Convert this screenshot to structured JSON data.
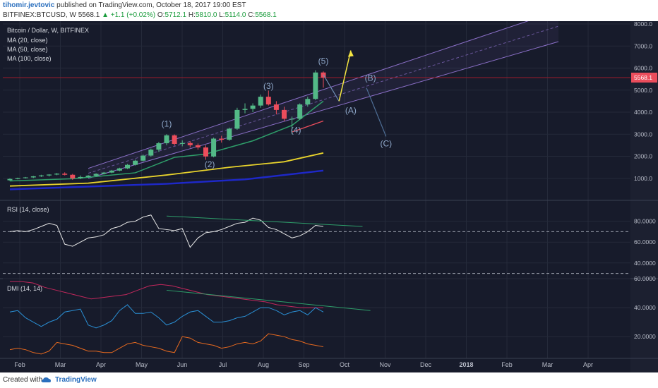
{
  "header": {
    "author": "tihomir.jevtovic",
    "published_text": "published on TradingView.com, October 18, 2017 19:00 EST",
    "symbol": "BITFINEX:BTCUSD, W",
    "last": "5568.1",
    "change": "+1.1 (+0.02%)",
    "ohlc": {
      "o_label": "O:",
      "o": "5712.1",
      "h_label": "H:",
      "h": "5810.0",
      "l_label": "L:",
      "l": "5114.0",
      "c_label": "C:",
      "c": "5568.1"
    }
  },
  "footer": {
    "created_with": "Created with",
    "brand": "TradingView",
    "logo_icon": "tradingview-logo-icon"
  },
  "colors": {
    "background": "#171b2b",
    "grid": "#252a3a",
    "up": "#53b987",
    "down": "#eb4d5c",
    "ma20": "#2e9e6a",
    "ma50": "#e8d32c",
    "ma100": "#1e28c8",
    "channel": "#8a6fc7",
    "rsi": "#e8e8e8",
    "dmi_plus": "#2a8fd4",
    "dmi_minus": "#e86a1f",
    "adx": "#c2275c",
    "price_line": "#9c1b2b",
    "arrow_up": "#f5e642",
    "annotation": "#4e6e95"
  },
  "chart_data": {
    "type": "candlestick",
    "title": "Bitcoin / Dollar, W, BITFINEX",
    "legend": [
      "MA (20, close)",
      "MA (50, close)",
      "MA (100, close)"
    ],
    "x_labels": [
      "Feb",
      "Mar",
      "Apr",
      "May",
      "Jun",
      "Jul",
      "Aug",
      "Sep",
      "Oct",
      "Nov",
      "Dec",
      "2018",
      "Feb",
      "Mar",
      "Apr"
    ],
    "y_ticks": [
      1000,
      2000,
      3000,
      4000,
      5000,
      6000,
      7000,
      8000
    ],
    "y_range": [
      0,
      8000
    ],
    "current_price": "5568.1",
    "candles": [
      {
        "o": 910,
        "h": 1000,
        "l": 880,
        "c": 970
      },
      {
        "o": 970,
        "h": 1030,
        "l": 950,
        "c": 1010
      },
      {
        "o": 1010,
        "h": 1060,
        "l": 990,
        "c": 1040
      },
      {
        "o": 1040,
        "h": 1110,
        "l": 1010,
        "c": 1090
      },
      {
        "o": 1090,
        "h": 1160,
        "l": 1060,
        "c": 1130
      },
      {
        "o": 1130,
        "h": 1190,
        "l": 1080,
        "c": 1170
      },
      {
        "o": 1170,
        "h": 1240,
        "l": 1140,
        "c": 1210
      },
      {
        "o": 1210,
        "h": 1270,
        "l": 1130,
        "c": 1160
      },
      {
        "o": 1160,
        "h": 1200,
        "l": 930,
        "c": 1000
      },
      {
        "o": 1000,
        "h": 1130,
        "l": 960,
        "c": 1060
      },
      {
        "o": 1060,
        "h": 1150,
        "l": 1030,
        "c": 1120
      },
      {
        "o": 1120,
        "h": 1230,
        "l": 1090,
        "c": 1200
      },
      {
        "o": 1200,
        "h": 1290,
        "l": 1170,
        "c": 1260
      },
      {
        "o": 1260,
        "h": 1380,
        "l": 1230,
        "c": 1350
      },
      {
        "o": 1350,
        "h": 1480,
        "l": 1320,
        "c": 1450
      },
      {
        "o": 1450,
        "h": 1650,
        "l": 1420,
        "c": 1610
      },
      {
        "o": 1610,
        "h": 1850,
        "l": 1580,
        "c": 1800
      },
      {
        "o": 1800,
        "h": 2080,
        "l": 1760,
        "c": 2030
      },
      {
        "o": 2030,
        "h": 2350,
        "l": 1980,
        "c": 2300
      },
      {
        "o": 2300,
        "h": 2650,
        "l": 2200,
        "c": 2590
      },
      {
        "o": 2590,
        "h": 3000,
        "l": 2500,
        "c": 2950
      },
      {
        "o": 2950,
        "h": 2990,
        "l": 2480,
        "c": 2560
      },
      {
        "o": 2560,
        "h": 2720,
        "l": 2450,
        "c": 2600
      },
      {
        "o": 2600,
        "h": 2680,
        "l": 2400,
        "c": 2500
      },
      {
        "o": 2500,
        "h": 2580,
        "l": 2300,
        "c": 2400
      },
      {
        "o": 2400,
        "h": 2500,
        "l": 1840,
        "c": 1990
      },
      {
        "o": 1990,
        "h": 2850,
        "l": 1950,
        "c": 2800
      },
      {
        "o": 2800,
        "h": 2930,
        "l": 2620,
        "c": 2750
      },
      {
        "o": 2750,
        "h": 3300,
        "l": 2700,
        "c": 3250
      },
      {
        "o": 3250,
        "h": 4200,
        "l": 3200,
        "c": 4100
      },
      {
        "o": 4100,
        "h": 4400,
        "l": 3950,
        "c": 4150
      },
      {
        "o": 4150,
        "h": 4400,
        "l": 4000,
        "c": 4300
      },
      {
        "o": 4300,
        "h": 4800,
        "l": 4200,
        "c": 4700
      },
      {
        "o": 4700,
        "h": 4980,
        "l": 4300,
        "c": 4350
      },
      {
        "o": 4350,
        "h": 4500,
        "l": 3900,
        "c": 4100
      },
      {
        "o": 4100,
        "h": 4250,
        "l": 3600,
        "c": 3700
      },
      {
        "o": 3700,
        "h": 3800,
        "l": 3000,
        "c": 3700
      },
      {
        "o": 3700,
        "h": 4400,
        "l": 3650,
        "c": 4350
      },
      {
        "o": 4350,
        "h": 4700,
        "l": 4250,
        "c": 4600
      },
      {
        "o": 4600,
        "h": 5900,
        "l": 4550,
        "c": 5800
      },
      {
        "o": 5800,
        "h": 5850,
        "l": 5114,
        "c": 5568
      }
    ],
    "ma20": [
      [
        0,
        880
      ],
      [
        8,
        980
      ],
      [
        16,
        1250
      ],
      [
        21,
        1950
      ],
      [
        25,
        2100
      ],
      [
        31,
        2700
      ],
      [
        36,
        3400
      ],
      [
        40,
        4500
      ]
    ],
    "ma50": [
      [
        0,
        650
      ],
      [
        10,
        780
      ],
      [
        20,
        1150
      ],
      [
        28,
        1500
      ],
      [
        35,
        1750
      ],
      [
        40,
        2150
      ]
    ],
    "ma100": [
      [
        0,
        500
      ],
      [
        20,
        750
      ],
      [
        30,
        950
      ],
      [
        40,
        1350
      ]
    ],
    "trend_line": [
      [
        36,
        3100
      ],
      [
        40,
        3600
      ]
    ],
    "channel": {
      "lower": [
        [
          10,
          1000
        ],
        [
          70,
          7200
        ]
      ],
      "upper": [
        [
          10,
          1450
        ],
        [
          70,
          8600
        ]
      ],
      "mid": [
        [
          10,
          1230
        ],
        [
          70,
          7900
        ]
      ]
    },
    "horizontal_line": 5568.1,
    "wave_labels": [
      {
        "text": "(1)",
        "i": 20,
        "y": 3350
      },
      {
        "text": "(2)",
        "i": 25.5,
        "y": 1500
      },
      {
        "text": "(3)",
        "i": 33,
        "y": 5050
      },
      {
        "text": "(4)",
        "i": 36.5,
        "y": 3050
      },
      {
        "text": "(5)",
        "i": 40,
        "y": 6200
      },
      {
        "text": "(A)",
        "i": 43.5,
        "y": 3950
      },
      {
        "text": "(B)",
        "i": 46,
        "y": 5430
      },
      {
        "text": "(C)",
        "i": 48,
        "y": 2450
      }
    ],
    "projection": {
      "down": [
        [
          40,
          5700
        ],
        [
          42,
          4500
        ]
      ],
      "up": [
        [
          42,
          4500
        ],
        [
          43.5,
          6800
        ]
      ],
      "b_to_c": [
        [
          45.5,
          5100
        ],
        [
          48,
          2900
        ]
      ]
    },
    "rsi": {
      "label": "RSI (14, close)",
      "y_ticks": [
        40,
        60,
        80
      ],
      "y_range": [
        25,
        100
      ],
      "upper_band": 70,
      "lower_band": 30,
      "values": [
        70,
        71,
        70,
        72,
        75,
        78,
        76,
        58,
        56,
        60,
        64,
        65,
        67,
        73,
        75,
        79,
        80,
        84,
        86,
        73,
        72,
        71,
        73,
        55,
        64,
        69,
        70,
        72,
        75,
        78,
        79,
        83,
        81,
        74,
        72,
        68,
        64,
        66,
        70,
        76,
        75
      ],
      "trend_line": [
        [
          20,
          85
        ],
        [
          45,
          75
        ]
      ]
    },
    "dmi": {
      "label": "DMI (14, 14)",
      "y_ticks": [
        20,
        40,
        60
      ],
      "y_range": [
        5,
        60
      ],
      "adx": [
        58,
        58,
        57,
        54,
        52,
        50,
        48,
        46,
        47,
        48,
        49,
        52,
        55,
        56,
        55,
        53,
        51,
        49,
        48,
        47,
        46,
        45,
        44,
        42,
        41,
        40,
        40,
        40
      ],
      "plus_di": [
        37,
        38,
        33,
        30,
        27,
        30,
        32,
        37,
        38,
        39,
        28,
        26,
        28,
        31,
        38,
        42,
        36,
        36,
        37,
        33,
        28,
        30,
        34,
        37,
        38,
        34,
        30,
        30,
        31,
        33,
        34,
        37,
        40,
        40,
        38,
        35,
        37,
        38,
        35,
        40,
        37
      ],
      "minus_di": [
        11,
        12,
        11,
        9,
        8,
        10,
        16,
        15,
        14,
        12,
        10,
        10,
        9,
        9,
        12,
        15,
        16,
        14,
        13,
        12,
        10,
        9,
        20,
        19,
        16,
        15,
        14,
        12,
        13,
        15,
        16,
        15,
        17,
        22,
        21,
        20,
        18,
        17,
        15,
        14,
        13
      ],
      "trend_line": [
        [
          20,
          52
        ],
        [
          46,
          38
        ]
      ]
    }
  }
}
